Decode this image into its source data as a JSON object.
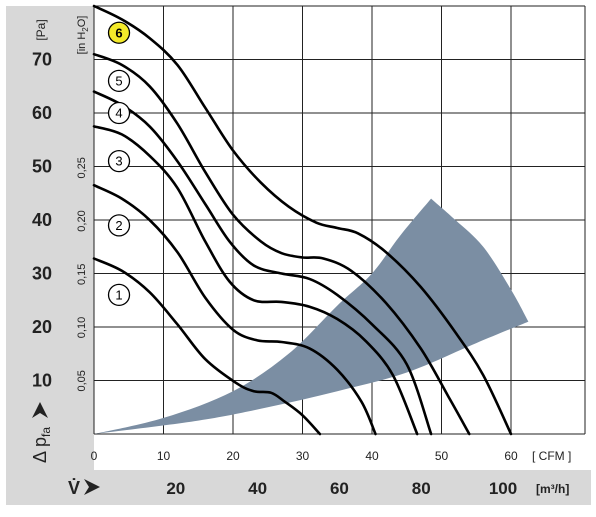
{
  "chart_data": {
    "type": "line",
    "x_axis": {
      "unit_label": "[ CFM ]",
      "ticks": [
        "0",
        "10",
        "20",
        "30",
        "40",
        "50",
        "60"
      ],
      "range": [
        0,
        60
      ]
    },
    "x_axis_secondary": {
      "symbol": "V̇",
      "unit_label": "[m³/h]",
      "ticks": [
        "20",
        "40",
        "60",
        "80",
        "100"
      ],
      "tick_values": [
        20,
        40,
        60,
        80,
        100
      ]
    },
    "y_axis": {
      "unit_label": "[Pa]",
      "symbol": "Δ p",
      "symbol_subscript": "fa",
      "ticks": [
        "10",
        "20",
        "30",
        "40",
        "50",
        "60",
        "70"
      ],
      "range": [
        0,
        80
      ]
    },
    "y_axis_secondary": {
      "unit_label": "[in H",
      "unit_subscript": "2",
      "unit_suffix": "O]",
      "ticks": [
        "0,05",
        "0,10",
        "0,15",
        "0,20",
        "0,25"
      ],
      "tick_values": [
        0.05,
        0.1,
        0.15,
        0.2,
        0.25
      ]
    },
    "grid": true,
    "operating_region": {
      "color": "#7b8ea3",
      "upper": [
        [
          0,
          0
        ],
        [
          10,
          3
        ],
        [
          20,
          8
        ],
        [
          28,
          15
        ],
        [
          35,
          24
        ],
        [
          40,
          30
        ],
        [
          44,
          37
        ],
        [
          48.5,
          44
        ]
      ],
      "outer": [
        [
          48.5,
          44
        ],
        [
          52,
          40
        ],
        [
          56,
          35
        ],
        [
          60,
          27
        ],
        [
          62.5,
          21
        ]
      ],
      "lower": [
        [
          62.5,
          21
        ],
        [
          55,
          17
        ],
        [
          45,
          11.5
        ],
        [
          35,
          8
        ],
        [
          25,
          5
        ],
        [
          15,
          2.5
        ],
        [
          0,
          0
        ]
      ]
    },
    "series": [
      {
        "name": "1",
        "highlighted": false,
        "label_at": [
          3.6,
          26
        ],
        "points": [
          [
            0,
            32.8
          ],
          [
            4,
            30.5
          ],
          [
            8,
            26.5
          ],
          [
            12,
            20.5
          ],
          [
            16,
            14
          ],
          [
            20.5,
            9.5
          ],
          [
            23,
            8
          ],
          [
            25.5,
            7.7
          ],
          [
            27.5,
            6
          ],
          [
            30,
            3.5
          ],
          [
            32.5,
            0
          ]
        ]
      },
      {
        "name": "2",
        "highlighted": false,
        "label_at": [
          3.6,
          39
        ],
        "points": [
          [
            0,
            46.5
          ],
          [
            4,
            44
          ],
          [
            8,
            40
          ],
          [
            12,
            34
          ],
          [
            16,
            25.5
          ],
          [
            20,
            19.5
          ],
          [
            23.5,
            17.5
          ],
          [
            27,
            17.2
          ],
          [
            31,
            16
          ],
          [
            35,
            12
          ],
          [
            38.5,
            6
          ],
          [
            40.5,
            0
          ]
        ]
      },
      {
        "name": "3",
        "highlighted": false,
        "label_at": [
          3.6,
          51
        ],
        "points": [
          [
            0,
            57.5
          ],
          [
            4,
            56
          ],
          [
            8,
            52
          ],
          [
            12,
            46
          ],
          [
            16,
            36
          ],
          [
            19.5,
            28.5
          ],
          [
            23,
            25
          ],
          [
            27,
            24.7
          ],
          [
            31,
            23.8
          ],
          [
            35,
            21.5
          ],
          [
            39,
            17.5
          ],
          [
            43,
            11
          ],
          [
            46.5,
            0
          ]
        ]
      },
      {
        "name": "4",
        "highlighted": false,
        "label_at": [
          3.6,
          60
        ],
        "points": [
          [
            0,
            64
          ],
          [
            4,
            61.5
          ],
          [
            8,
            57.5
          ],
          [
            12,
            51
          ],
          [
            16,
            43
          ],
          [
            19.5,
            36
          ],
          [
            23,
            31.5
          ],
          [
            27,
            30
          ],
          [
            31,
            29
          ],
          [
            35,
            26
          ],
          [
            40,
            20.5
          ],
          [
            45,
            13
          ],
          [
            48.5,
            0
          ]
        ]
      },
      {
        "name": "5",
        "highlighted": false,
        "label_at": [
          3.6,
          66
        ],
        "points": [
          [
            0,
            71
          ],
          [
            4,
            69
          ],
          [
            8,
            65
          ],
          [
            12,
            58
          ],
          [
            16,
            49
          ],
          [
            20,
            41
          ],
          [
            24,
            36
          ],
          [
            27,
            33.8
          ],
          [
            30,
            33
          ],
          [
            33,
            32.8
          ],
          [
            37,
            30.5
          ],
          [
            42,
            24.5
          ],
          [
            47,
            16
          ],
          [
            51,
            7
          ],
          [
            54,
            0
          ]
        ]
      },
      {
        "name": "6",
        "highlighted": true,
        "label_at": [
          3.6,
          75
        ],
        "points": [
          [
            0,
            80
          ],
          [
            4,
            77.5
          ],
          [
            8,
            74
          ],
          [
            12,
            69
          ],
          [
            16,
            61
          ],
          [
            20,
            53
          ],
          [
            24,
            47
          ],
          [
            28,
            42.5
          ],
          [
            32,
            39.5
          ],
          [
            35,
            38.5
          ],
          [
            38,
            37.5
          ],
          [
            42,
            34
          ],
          [
            47,
            27.5
          ],
          [
            52,
            19
          ],
          [
            56,
            11
          ],
          [
            60,
            0
          ]
        ]
      }
    ]
  }
}
